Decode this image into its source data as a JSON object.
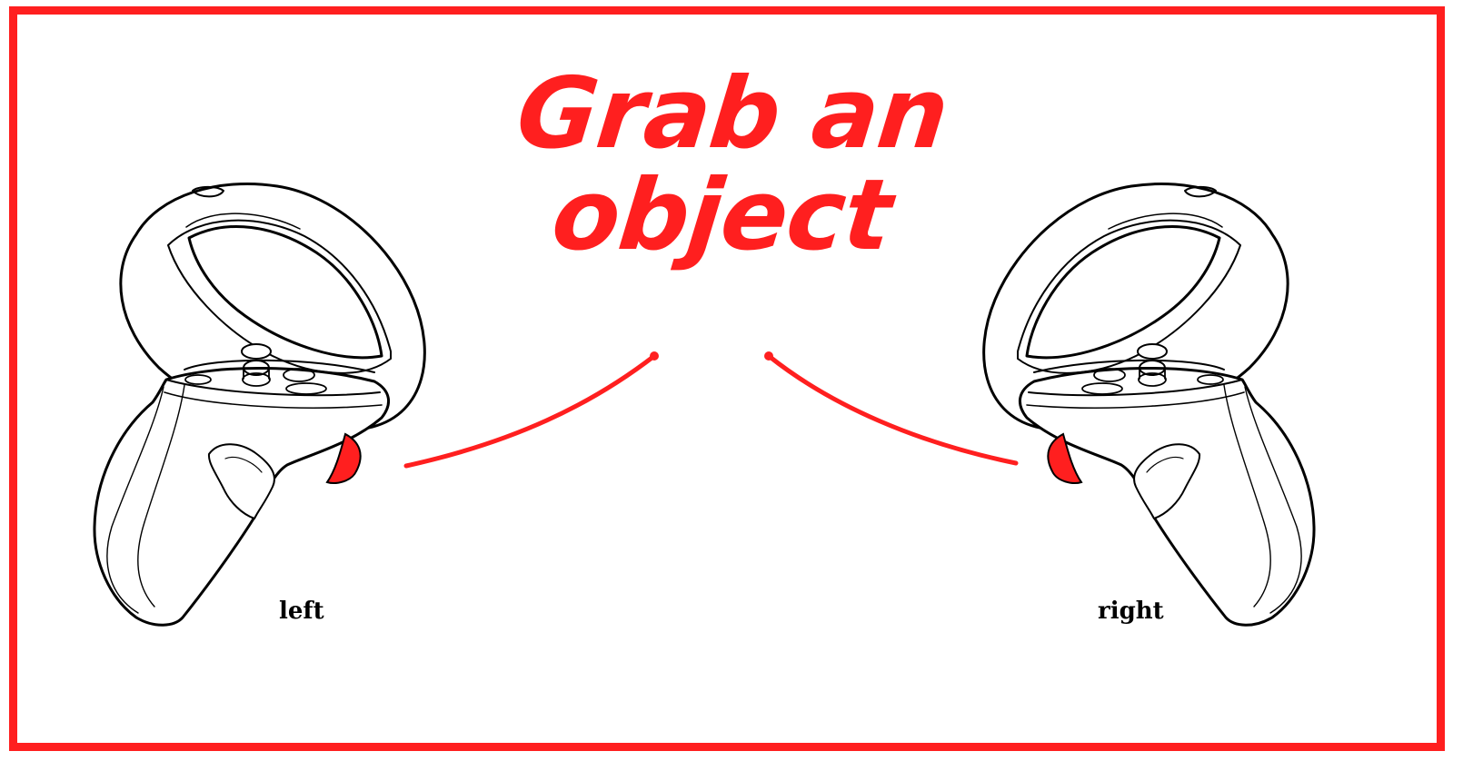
{
  "title": {
    "line1": "Grab an",
    "line2": "object"
  },
  "labels": {
    "left": "left",
    "right": "right"
  },
  "colors": {
    "accent": "#ff1f1f",
    "line": "#000000",
    "background": "#ffffff"
  },
  "icons": {
    "left_controller": "left-vr-controller-icon",
    "right_controller": "right-vr-controller-icon",
    "grip_button": "grip-button-icon"
  }
}
